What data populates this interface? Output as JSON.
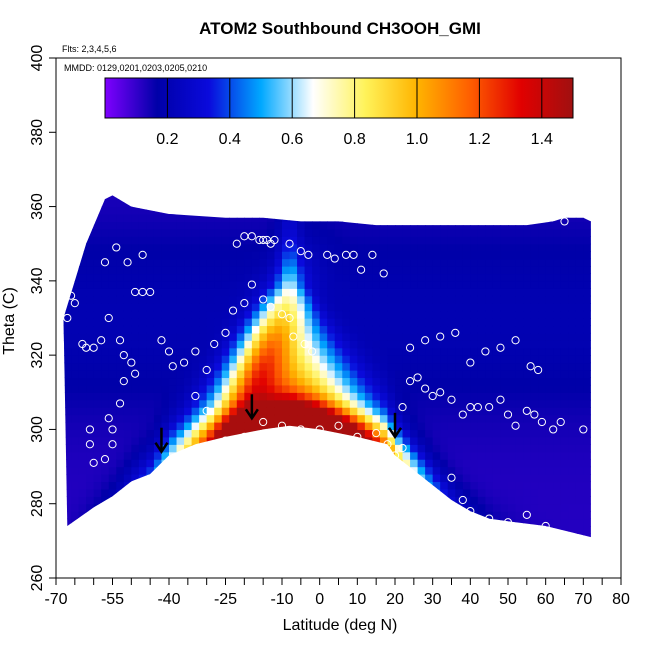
{
  "chart_data": {
    "type": "heatmap",
    "title": "ATOM2 Southbound CH3OOH_GMI",
    "flights_label": "Flts: 2,3,4,5,6",
    "dates_label": "MMDD: 0129,0201,0203,0205,0210",
    "xlabel": "Latitude (deg N)",
    "ylabel": "Theta (C)",
    "xlim": [
      -70,
      80
    ],
    "ylim": [
      260,
      400
    ],
    "x_ticks": [
      -70,
      -55,
      -40,
      -25,
      -10,
      0,
      10,
      20,
      30,
      40,
      50,
      60,
      70,
      80
    ],
    "x_minor_ticks": [
      -65,
      -60,
      -50,
      -45,
      -35,
      -30,
      -20,
      -15,
      -5,
      5,
      15,
      25,
      35,
      45,
      55,
      65,
      75
    ],
    "y_ticks": [
      260,
      280,
      300,
      320,
      340,
      360,
      380,
      400
    ],
    "colorbar": {
      "range": [
        0,
        1.5
      ],
      "tick_values": [
        0.2,
        0.4,
        0.6,
        0.8,
        1.0,
        1.2,
        1.4
      ],
      "tick_labels": [
        "0.2",
        "0.4",
        "0.6",
        "0.8",
        "1.0",
        "1.2",
        "1.4"
      ],
      "divisions": [
        0.2,
        0.4,
        0.6,
        0.8,
        1.0,
        1.2,
        1.4
      ],
      "colors": [
        "#7f00ff",
        "#0000a8",
        "#0a0adc",
        "#00a8ff",
        "#ffffff",
        "#fff35a",
        "#ffb400",
        "#ff6000",
        "#e10000",
        "#a01010"
      ]
    },
    "surface_boundary": [
      [
        -67,
        274
      ],
      [
        -60,
        279
      ],
      [
        -55,
        282
      ],
      [
        -50,
        286
      ],
      [
        -45,
        288
      ],
      [
        -40,
        293
      ],
      [
        -33,
        296
      ],
      [
        -25,
        298
      ],
      [
        -15,
        300
      ],
      [
        -8,
        301
      ],
      [
        0,
        300
      ],
      [
        10,
        298
      ],
      [
        18,
        296
      ],
      [
        20,
        293
      ],
      [
        25,
        289
      ],
      [
        30,
        285
      ],
      [
        35,
        281
      ],
      [
        40,
        278
      ],
      [
        45,
        276
      ],
      [
        52,
        275
      ],
      [
        60,
        274
      ],
      [
        68,
        272
      ],
      [
        72,
        271
      ]
    ],
    "top_boundary": [
      [
        -68,
        330
      ],
      [
        -62,
        350
      ],
      [
        -57,
        362
      ],
      [
        -55,
        363
      ],
      [
        -50,
        360
      ],
      [
        -40,
        358
      ],
      [
        -25,
        357
      ],
      [
        -15,
        357
      ],
      [
        -5,
        356
      ],
      [
        5,
        356
      ],
      [
        15,
        355
      ],
      [
        25,
        355
      ],
      [
        35,
        355
      ],
      [
        45,
        355
      ],
      [
        55,
        355
      ],
      [
        62,
        356
      ],
      [
        65,
        357
      ],
      [
        70,
        357
      ],
      [
        72,
        356
      ]
    ],
    "arrows": [
      [
        -42,
        294
      ],
      [
        -18,
        303
      ],
      [
        20,
        298
      ]
    ],
    "sample_points": [
      [
        -67,
        330
      ],
      [
        -66,
        336
      ],
      [
        -65,
        334
      ],
      [
        -63,
        323
      ],
      [
        -62,
        322
      ],
      [
        -60,
        322
      ],
      [
        -58,
        324
      ],
      [
        -56,
        330
      ],
      [
        -57,
        345
      ],
      [
        -54,
        349
      ],
      [
        -51,
        345
      ],
      [
        -49,
        337
      ],
      [
        -47,
        337
      ],
      [
        -45,
        337
      ],
      [
        -47,
        347
      ],
      [
        -42,
        324
      ],
      [
        -40,
        321
      ],
      [
        -39,
        317
      ],
      [
        -36,
        318
      ],
      [
        -33,
        321
      ],
      [
        -30,
        316
      ],
      [
        -28,
        323
      ],
      [
        -25,
        326
      ],
      [
        -23,
        332
      ],
      [
        -20,
        334
      ],
      [
        -18,
        339
      ],
      [
        -15,
        335
      ],
      [
        -13,
        333
      ],
      [
        -10,
        331
      ],
      [
        -8,
        330
      ],
      [
        -7,
        325
      ],
      [
        -4,
        323
      ],
      [
        -2,
        321
      ],
      [
        -53,
        324
      ],
      [
        -52,
        320
      ],
      [
        -50,
        318
      ],
      [
        -49,
        315
      ],
      [
        -52,
        313
      ],
      [
        -53,
        307
      ],
      [
        -55,
        300
      ],
      [
        -56,
        303
      ],
      [
        -55,
        296
      ],
      [
        -57,
        292
      ],
      [
        -60,
        291
      ],
      [
        -61,
        296
      ],
      [
        -61,
        300
      ],
      [
        -22,
        350
      ],
      [
        -20,
        352
      ],
      [
        -18,
        352
      ],
      [
        -16,
        351
      ],
      [
        -15,
        351
      ],
      [
        -14,
        351
      ],
      [
        -13,
        350
      ],
      [
        -12,
        351
      ],
      [
        -8,
        350
      ],
      [
        -5,
        348
      ],
      [
        -3,
        347
      ],
      [
        2,
        347
      ],
      [
        4,
        346
      ],
      [
        7,
        347
      ],
      [
        9,
        347
      ],
      [
        11,
        343
      ],
      [
        14,
        347
      ],
      [
        17,
        342
      ],
      [
        -33,
        309
      ],
      [
        -30,
        305
      ],
      [
        -25,
        297
      ],
      [
        -20,
        298
      ],
      [
        -15,
        302
      ],
      [
        -10,
        301
      ],
      [
        -5,
        300
      ],
      [
        0,
        300
      ],
      [
        5,
        301
      ],
      [
        10,
        298
      ],
      [
        15,
        299
      ],
      [
        18,
        296
      ],
      [
        20,
        293
      ],
      [
        22,
        295
      ],
      [
        22,
        306
      ],
      [
        24,
        313
      ],
      [
        26,
        314
      ],
      [
        28,
        311
      ],
      [
        30,
        309
      ],
      [
        32,
        310
      ],
      [
        35,
        308
      ],
      [
        38,
        304
      ],
      [
        40,
        306
      ],
      [
        42,
        306
      ],
      [
        45,
        306
      ],
      [
        48,
        308
      ],
      [
        50,
        304
      ],
      [
        52,
        301
      ],
      [
        55,
        305
      ],
      [
        57,
        304
      ],
      [
        59,
        302
      ],
      [
        62,
        300
      ],
      [
        64,
        302
      ],
      [
        70,
        300
      ],
      [
        24,
        322
      ],
      [
        28,
        324
      ],
      [
        32,
        325
      ],
      [
        36,
        326
      ],
      [
        40,
        318
      ],
      [
        44,
        321
      ],
      [
        48,
        322
      ],
      [
        52,
        324
      ],
      [
        56,
        317
      ],
      [
        58,
        316
      ],
      [
        27,
        284
      ],
      [
        30,
        283
      ],
      [
        35,
        287
      ],
      [
        38,
        281
      ],
      [
        40,
        278
      ],
      [
        45,
        276
      ],
      [
        50,
        275
      ],
      [
        55,
        277
      ],
      [
        60,
        274
      ],
      [
        65,
        356
      ]
    ]
  }
}
